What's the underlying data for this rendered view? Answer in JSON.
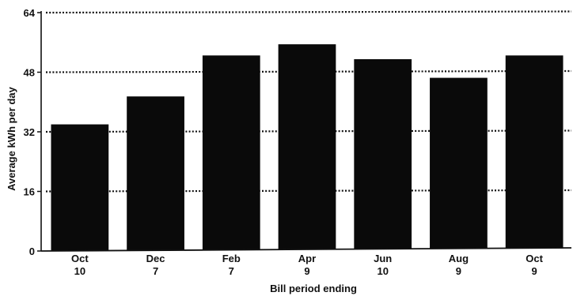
{
  "chart_data": {
    "type": "bar",
    "categories": [
      {
        "month": "Oct",
        "day": "10"
      },
      {
        "month": "Dec",
        "day": "7"
      },
      {
        "month": "Feb",
        "day": "7"
      },
      {
        "month": "Apr",
        "day": "9"
      },
      {
        "month": "Jun",
        "day": "10"
      },
      {
        "month": "Aug",
        "day": "9"
      },
      {
        "month": "Oct",
        "day": "9"
      }
    ],
    "values": [
      34,
      41.5,
      52.5,
      55.5,
      51.5,
      46.5,
      52.5
    ],
    "xlabel": "Bill period ending",
    "ylabel": "Average kWh per day",
    "ylim": [
      0,
      64
    ],
    "yticks": [
      "0",
      "16",
      "32",
      "48",
      "64"
    ],
    "grid": "dotted horizontal",
    "bar_color": "#0a0a0a"
  }
}
